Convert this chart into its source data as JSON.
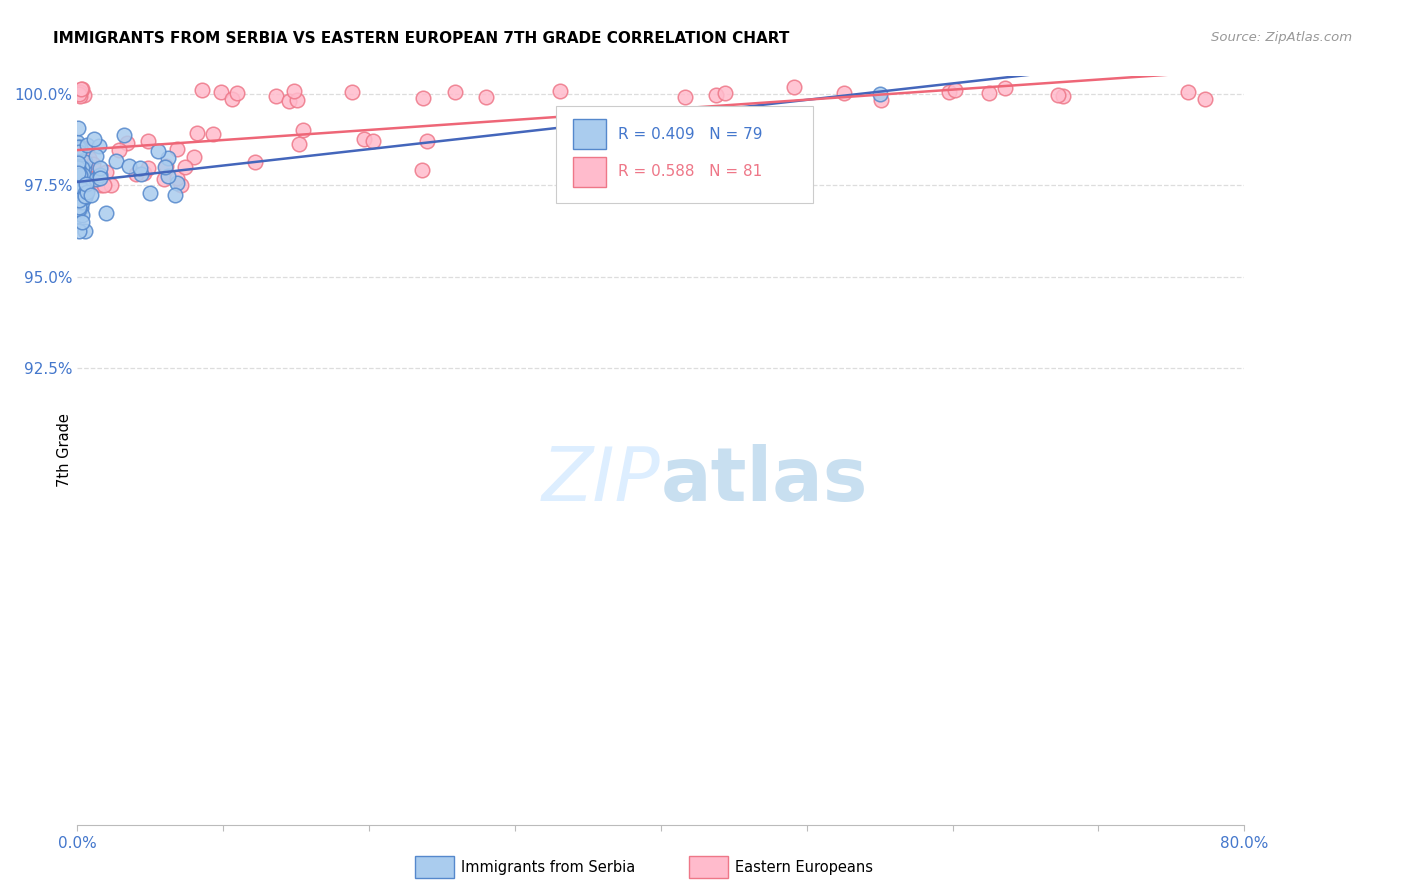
{
  "title": "IMMIGRANTS FROM SERBIA VS EASTERN EUROPEAN 7TH GRADE CORRELATION CHART",
  "source": "Source: ZipAtlas.com",
  "ylabel": "7th Grade",
  "xlim": [
    0.0,
    0.8
  ],
  "ylim": [
    0.8,
    1.005
  ],
  "xticks": [
    0.0,
    0.1,
    0.2,
    0.3,
    0.4,
    0.5,
    0.6,
    0.7,
    0.8
  ],
  "xticklabels": [
    "0.0%",
    "",
    "",
    "",
    "",
    "",
    "",
    "",
    "80.0%"
  ],
  "ytick_vals": [
    0.925,
    0.95,
    0.975,
    1.0
  ],
  "yticklabels": [
    "92.5%",
    "95.0%",
    "97.5%",
    "100.0%"
  ],
  "legend_r1": "R = 0.409",
  "legend_n1": "N = 79",
  "legend_r2": "R = 0.588",
  "legend_n2": "N = 81",
  "color_serbia_fill": "#aaccee",
  "color_serbia_edge": "#5588cc",
  "color_eastern_fill": "#ffbbcc",
  "color_eastern_edge": "#ee7788",
  "color_serbia_line": "#4466bb",
  "color_eastern_line": "#ee6677",
  "color_axis_labels": "#4477cc",
  "grid_color": "#dddddd",
  "watermark_color": "#ddeeff"
}
